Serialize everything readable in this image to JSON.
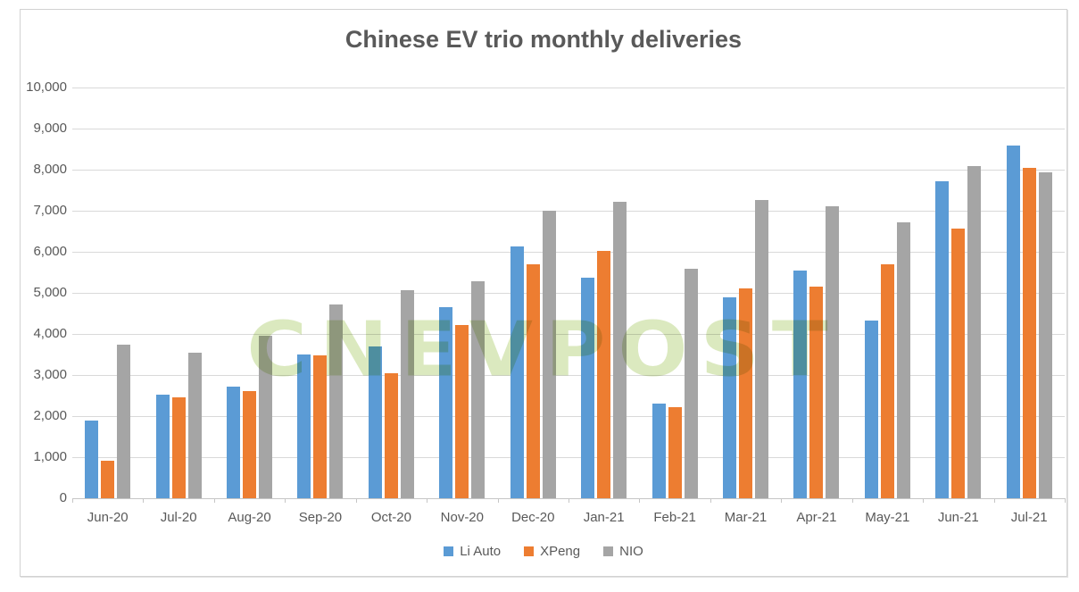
{
  "title": "Chinese EV trio monthly deliveries",
  "watermark_text": "CNEVPOST",
  "colors": {
    "li_auto": "#5B9BD5",
    "xpeng": "#ED7D31",
    "nio": "#A5A5A5",
    "title_text": "#595959",
    "axis_text": "#595959",
    "gridline": "#D9D9D9",
    "axis_line": "#C6C6C6",
    "frame_border": "#D2D2D2",
    "watermark": "#D9E8BC"
  },
  "chart_data": {
    "type": "bar",
    "title": "Chinese EV trio monthly deliveries",
    "categories": [
      "Jun-20",
      "Jul-20",
      "Aug-20",
      "Sep-20",
      "Oct-20",
      "Nov-20",
      "Dec-20",
      "Jan-21",
      "Feb-21",
      "Mar-21",
      "Apr-21",
      "May-21",
      "Jun-21",
      "Jul-21"
    ],
    "series": [
      {
        "name": "Li Auto",
        "color": "#5B9BD5",
        "values": [
          1891,
          2516,
          2711,
          3504,
          3692,
          4646,
          6126,
          5379,
          2300,
          4900,
          5539,
          4323,
          7713,
          8589
        ]
      },
      {
        "name": "XPeng",
        "color": "#ED7D31",
        "values": [
          910,
          2451,
          2619,
          3478,
          3040,
          4224,
          5700,
          6015,
          2223,
          5102,
          5147,
          5686,
          6565,
          8040
        ]
      },
      {
        "name": "NIO",
        "color": "#A5A5A5",
        "values": [
          3740,
          3533,
          3965,
          4708,
          5055,
          5291,
          7007,
          7225,
          5578,
          7257,
          7102,
          6711,
          8083,
          7931
        ]
      }
    ],
    "xlabel": "",
    "ylabel": "",
    "ylim": [
      0,
      10000
    ],
    "y_tick_step": 1000,
    "y_tick_labels": [
      "0",
      "1,000",
      "2,000",
      "3,000",
      "4,000",
      "5,000",
      "6,000",
      "7,000",
      "8,000",
      "9,000",
      "10,000"
    ],
    "grid": true,
    "legend_position": "bottom"
  }
}
